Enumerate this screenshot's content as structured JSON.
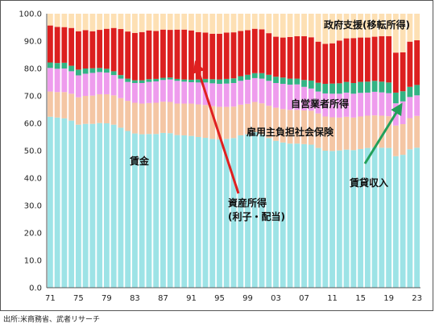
{
  "source": "出所:米商務省、武者リサーチ",
  "chart_data": {
    "type": "bar",
    "stacked": true,
    "ylim": [
      0,
      100
    ],
    "yticks": [
      "0.0",
      "10.0",
      "20.0",
      "30.0",
      "40.0",
      "50.0",
      "60.0",
      "70.0",
      "80.0",
      "90.0",
      "100.0"
    ],
    "ytick_values": [
      0,
      10,
      20,
      30,
      40,
      50,
      60,
      70,
      80,
      90,
      100
    ],
    "xtick_labels": [
      "71",
      "75",
      "79",
      "83",
      "87",
      "91",
      "95",
      "99",
      "03",
      "07",
      "11",
      "15",
      "19",
      "23"
    ],
    "categories": [
      "1971",
      "1972",
      "1973",
      "1974",
      "1975",
      "1976",
      "1977",
      "1978",
      "1979",
      "1980",
      "1981",
      "1982",
      "1983",
      "1984",
      "1985",
      "1986",
      "1987",
      "1988",
      "1989",
      "1990",
      "1991",
      "1992",
      "1993",
      "1994",
      "1995",
      "1996",
      "1997",
      "1998",
      "1999",
      "2000",
      "2001",
      "2002",
      "2003",
      "2004",
      "2005",
      "2006",
      "2007",
      "2008",
      "2009",
      "2010",
      "2011",
      "2012",
      "2013",
      "2014",
      "2015",
      "2016",
      "2017",
      "2018",
      "2019",
      "2020",
      "2021",
      "2022",
      "2023"
    ],
    "grid": false,
    "series": [
      {
        "name": "賃金",
        "color": "#9de3e6",
        "values": [
          62.4,
          62.1,
          61.8,
          61.0,
          59.5,
          59.8,
          59.8,
          60.1,
          60.0,
          59.5,
          58.4,
          57.2,
          56.3,
          56.0,
          56.1,
          56.1,
          56.5,
          56.4,
          55.7,
          55.6,
          55.4,
          55.0,
          54.7,
          54.3,
          54.1,
          54.3,
          54.6,
          55.6,
          56.0,
          56.8,
          56.0,
          54.6,
          53.6,
          53.0,
          52.6,
          52.6,
          52.4,
          52.2,
          51.0,
          50.0,
          49.9,
          50.1,
          50.4,
          50.2,
          50.6,
          51.0,
          51.2,
          51.1,
          51.0,
          48.0,
          48.5,
          50.5,
          51.1
        ]
      },
      {
        "name": "雇用主負担社会保険",
        "color": "#f4c6a4",
        "values": [
          9.2,
          9.3,
          9.6,
          9.8,
          10.0,
          10.2,
          10.3,
          10.5,
          10.6,
          10.7,
          10.8,
          11.0,
          11.2,
          11.2,
          11.3,
          11.4,
          11.4,
          11.4,
          11.5,
          11.6,
          11.8,
          11.9,
          12.0,
          12.0,
          11.9,
          11.7,
          11.5,
          11.2,
          11.1,
          11.0,
          11.3,
          11.8,
          12.1,
          12.2,
          12.3,
          12.3,
          12.3,
          12.4,
          12.6,
          12.5,
          12.3,
          12.0,
          12.0,
          11.9,
          11.9,
          11.8,
          11.7,
          11.7,
          11.6,
          11.2,
          11.2,
          11.4,
          11.6
        ]
      },
      {
        "name": "自営業者所得",
        "color": "#ee9ced",
        "values": [
          8.6,
          8.5,
          8.6,
          8.2,
          8.0,
          8.1,
          8.3,
          8.1,
          7.9,
          7.4,
          7.1,
          6.9,
          7.2,
          7.5,
          7.7,
          7.8,
          7.9,
          8.2,
          8.3,
          8.0,
          7.8,
          8.0,
          8.2,
          8.3,
          8.4,
          8.5,
          8.6,
          8.7,
          8.8,
          8.7,
          9.0,
          9.1,
          9.0,
          9.2,
          9.2,
          9.3,
          8.6,
          8.1,
          8.0,
          8.4,
          8.6,
          8.7,
          8.8,
          8.7,
          8.6,
          8.4,
          8.6,
          8.5,
          8.4,
          8.1,
          8.3,
          7.7,
          7.5
        ]
      },
      {
        "name": "賃貸収入",
        "color": "#33b384",
        "values": [
          2.0,
          2.1,
          2.1,
          2.0,
          2.1,
          1.9,
          1.7,
          1.5,
          1.4,
          1.4,
          1.3,
          1.2,
          1.0,
          1.0,
          1.0,
          0.9,
          0.8,
          0.7,
          0.7,
          0.8,
          0.9,
          1.1,
          1.3,
          1.5,
          1.6,
          1.7,
          1.7,
          1.7,
          1.8,
          1.8,
          2.0,
          2.2,
          2.3,
          2.3,
          2.2,
          2.1,
          2.5,
          2.9,
          3.2,
          3.5,
          3.7,
          3.8,
          3.9,
          3.9,
          4.0,
          4.0,
          4.0,
          3.9,
          3.9,
          3.9,
          3.7,
          3.7,
          3.8
        ]
      },
      {
        "name": "資産所得(利子・配当)",
        "color": "#dc1f1f",
        "values": [
          13.5,
          13.2,
          13.0,
          13.8,
          14.0,
          14.0,
          13.5,
          13.9,
          14.6,
          15.8,
          16.8,
          17.2,
          17.3,
          17.6,
          17.8,
          17.5,
          17.6,
          17.4,
          18.0,
          18.2,
          18.0,
          17.3,
          16.9,
          16.6,
          16.7,
          16.9,
          16.8,
          16.5,
          16.3,
          16.2,
          16.0,
          15.2,
          14.6,
          14.6,
          15.2,
          15.5,
          16.0,
          15.8,
          15.0,
          14.6,
          14.7,
          15.6,
          15.9,
          16.4,
          16.2,
          16.1,
          16.1,
          16.6,
          16.9,
          14.6,
          14.2,
          16.5,
          16.3
        ]
      },
      {
        "name": "政府支援(移転所得)",
        "color": "#fde0b4",
        "values": [
          4.3,
          4.8,
          4.9,
          5.2,
          6.4,
          6.0,
          6.4,
          5.9,
          5.5,
          5.2,
          5.6,
          6.5,
          7.0,
          6.7,
          6.1,
          6.3,
          5.8,
          5.9,
          5.8,
          5.8,
          6.1,
          6.7,
          6.9,
          7.3,
          7.3,
          6.9,
          6.8,
          6.3,
          6.0,
          5.5,
          5.7,
          7.1,
          8.4,
          8.7,
          8.5,
          8.2,
          8.2,
          8.6,
          10.2,
          11.0,
          10.8,
          9.8,
          9.0,
          8.9,
          8.7,
          8.7,
          8.4,
          8.2,
          8.2,
          14.2,
          14.1,
          10.2,
          9.7
        ]
      }
    ],
    "annotations": [
      {
        "text": "政府支援(移転所得)"
      },
      {
        "text": "自営業者所得"
      },
      {
        "text": "雇用主負担社会保険"
      },
      {
        "text": "賃金"
      },
      {
        "text": "資産所得"
      },
      {
        "text": "(利子・配当)"
      },
      {
        "text": "賃貸収入"
      }
    ]
  }
}
